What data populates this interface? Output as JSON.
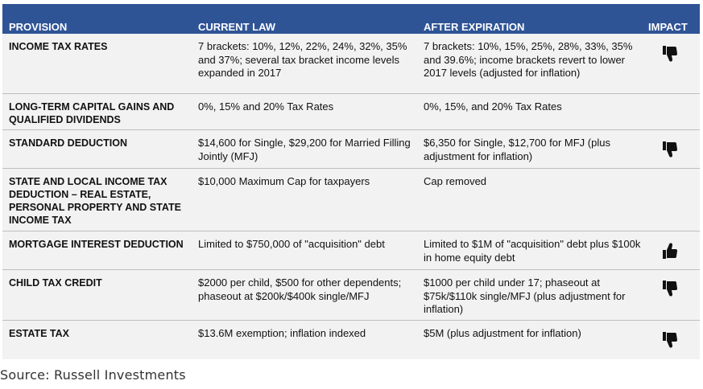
{
  "headers": {
    "provision": "PROVISION",
    "current": "CURRENT LAW",
    "after": "AFTER EXPIRATION",
    "impact": "IMPACT"
  },
  "rows": [
    {
      "provision": "INCOME TAX RATES",
      "current": "7 brackets: 10%, 12%, 22%, 24%, 32%, 35% and 37%; several tax bracket income levels expanded in 2017",
      "after": "7 brackets: 10%, 15%, 25%, 28%, 33%, 35% and 39.6%; income brackets revert to lower 2017 levels (adjusted for inflation)",
      "impact": "thumbs-down-icon"
    },
    {
      "provision": "LONG-TERM CAPITAL GAINS AND QUALIFIED DIVIDENDS",
      "current": "0%, 15% and 20% Tax Rates",
      "after": "0%, 15%, and 20% Tax Rates",
      "impact": ""
    },
    {
      "provision": "STANDARD DEDUCTION",
      "current": "$14,600 for Single, $29,200 for Married Filling Jointly (MFJ)",
      "after": "$6,350 for Single, $12,700 for MFJ (plus adjustment for inflation)",
      "impact": "thumbs-down-icon"
    },
    {
      "provision": "STATE AND LOCAL INCOME TAX DEDUCTION – REAL ESTATE, PERSONAL PROPERTY AND STATE INCOME TAX",
      "current": "$10,000 Maximum Cap for taxpayers",
      "after": "Cap removed",
      "impact": ""
    },
    {
      "provision": "MORTGAGE INTEREST DEDUCTION",
      "current": "Limited to $750,000 of \"acquisition\" debt",
      "after": "Limited to $1M of \"acquisition\" debt plus $100k in home equity debt",
      "impact": "thumbs-up-icon"
    },
    {
      "provision": "CHILD TAX CREDIT",
      "current": "$2000 per child, $500 for other dependents; phaseout at $200k/$400k single/MFJ",
      "after": "$1000 per child under 17; phaseout at $75k/$110k single/MFJ (plus adjustment for inflation)",
      "impact": "thumbs-down-icon"
    },
    {
      "provision": "ESTATE TAX",
      "current": "$13.6M exemption; inflation indexed",
      "after": "$5M (plus adjustment for inflation)",
      "impact": "thumbs-down-icon"
    }
  ],
  "source": "Source: Russell Investments",
  "colors": {
    "header_bg": "#2f5496",
    "row_bg": "#f2f2f2",
    "divider": "#bfbfbf"
  }
}
